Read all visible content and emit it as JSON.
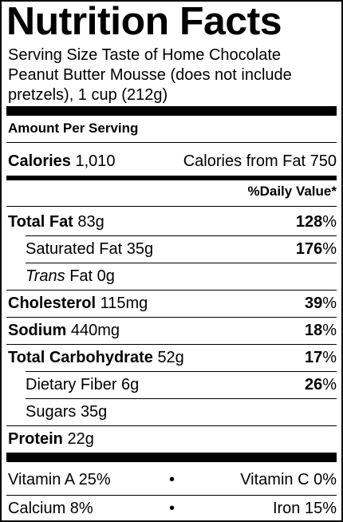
{
  "title": "Nutrition Facts",
  "serving": "Serving Size Taste of Home Chocolate Peanut Butter Mousse (does not include pretzels), 1 cup (212g)",
  "amount_per_serving": "Amount Per Serving",
  "calories": {
    "label": "Calories",
    "value": "1,010",
    "from_fat": "Calories from Fat 750"
  },
  "daily_value_header": "%Daily Value*",
  "nutrients": {
    "total_fat": {
      "label": "Total Fat",
      "amount": "83g",
      "dv": "128",
      "pct_sign": "%"
    },
    "saturated_fat": {
      "label": "Saturated Fat",
      "amount": "35g",
      "dv": "176",
      "pct_sign": "%"
    },
    "trans_fat": {
      "label_italic": "Trans",
      "label": "Fat",
      "amount": "0g"
    },
    "cholesterol": {
      "label": "Cholesterol",
      "amount": "115mg",
      "dv": "39",
      "pct_sign": "%"
    },
    "sodium": {
      "label": "Sodium",
      "amount": "440mg",
      "dv": "18",
      "pct_sign": "%"
    },
    "total_carb": {
      "label": "Total Carbohydrate",
      "amount": "52g",
      "dv": "17",
      "pct_sign": "%"
    },
    "dietary_fiber": {
      "label": "Dietary Fiber",
      "amount": "6g",
      "dv": "26",
      "pct_sign": "%"
    },
    "sugars": {
      "label": "Sugars",
      "amount": "35g"
    },
    "protein": {
      "label": "Protein",
      "amount": "22g"
    }
  },
  "vitamins": {
    "vitamin_a": "Vitamin A 25%",
    "vitamin_c": "Vitamin C 0%",
    "calcium": "Calcium 8%",
    "iron": "Iron 15%",
    "separator": "•"
  }
}
